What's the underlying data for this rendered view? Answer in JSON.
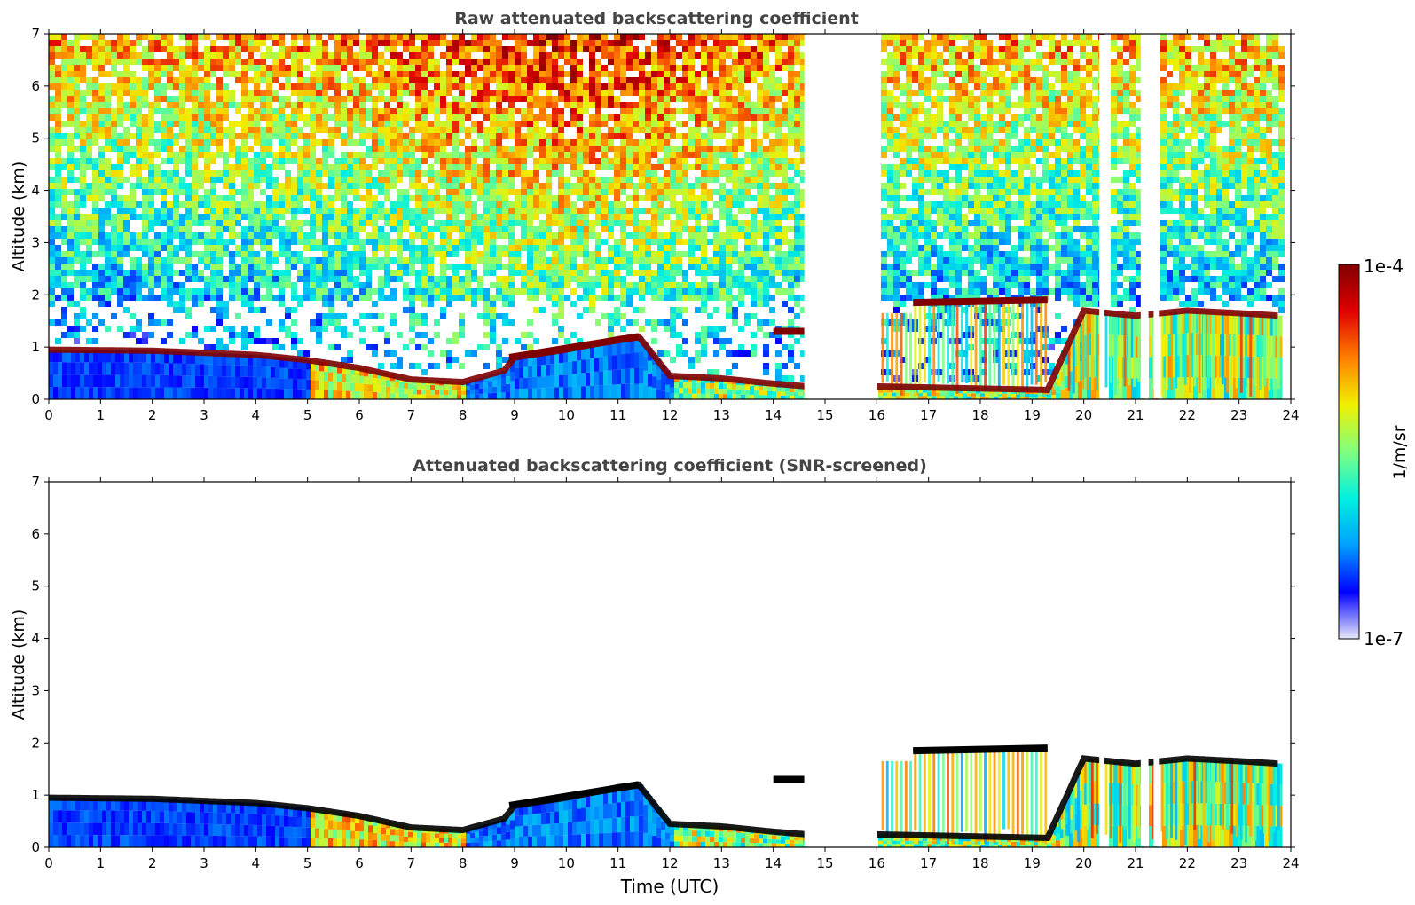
{
  "figure": {
    "xlabel": "Time (UTC)",
    "colorbar": {
      "label": "1/m/sr",
      "max_label": "1e-4",
      "min_label": "1e-7",
      "scale": "log",
      "range": [
        1e-07,
        0.0001
      ],
      "colormap": "jet",
      "stops": [
        "#e8e8f8",
        "#0000ff",
        "#00a0ff",
        "#00f0e0",
        "#80ff80",
        "#f0f000",
        "#ff8000",
        "#e00000",
        "#800000"
      ]
    }
  },
  "chart_data": [
    {
      "type": "heatmap",
      "title": "Raw attenuated backscattering coefficient",
      "xlabel": "",
      "ylabel": "Altitude (km)",
      "xlim": [
        0,
        24
      ],
      "ylim": [
        0,
        7
      ],
      "xticks": [
        "0",
        "1",
        "2",
        "3",
        "4",
        "5",
        "6",
        "7",
        "8",
        "9",
        "10",
        "11",
        "12",
        "13",
        "14",
        "15",
        "16",
        "17",
        "18",
        "19",
        "20",
        "21",
        "22",
        "23",
        "24"
      ],
      "yticks": [
        "0",
        "1",
        "2",
        "3",
        "4",
        "5",
        "6",
        "7"
      ],
      "z_units": "1/m/sr",
      "z_scale": "log",
      "z_range": [
        1e-07,
        0.0001
      ],
      "data_extent_hours": [
        0,
        23.8
      ],
      "noise_above_layer": true,
      "background_peak_hour": 10,
      "cloud_layer_top_km": {
        "hours": [
          0,
          2,
          4,
          5,
          6,
          7,
          8,
          8.8,
          9,
          10,
          11,
          11.4,
          12,
          13,
          14,
          15,
          16,
          17,
          18,
          19,
          19.3,
          20,
          21,
          22,
          23,
          23.8
        ],
        "altitude": [
          0.95,
          0.93,
          0.85,
          0.75,
          0.6,
          0.38,
          0.33,
          0.55,
          0.8,
          0.95,
          1.15,
          1.2,
          0.45,
          0.4,
          0.3,
          0.22,
          0.25,
          0.25,
          0.22,
          0.2,
          0.18,
          1.7,
          1.6,
          1.7,
          1.65,
          1.6
        ]
      },
      "elevated_cloud_segments_km": [
        {
          "hours": [
            8.9,
            11.4
          ],
          "altitude": [
            0.8,
            1.2
          ]
        },
        {
          "hours": [
            14.0,
            14.6
          ],
          "altitude": [
            1.3,
            1.3
          ]
        },
        {
          "hours": [
            16.7,
            19.3
          ],
          "altitude": [
            1.85,
            1.9
          ]
        }
      ],
      "gap_hours": [
        [
          14.6,
          16.0
        ],
        [
          20.3,
          20.4
        ],
        [
          21.1,
          21.25
        ],
        [
          21.35,
          21.45
        ]
      ]
    },
    {
      "type": "heatmap",
      "title": "Attenuated backscattering coefficient (SNR-screened)",
      "xlabel": "Time (UTC)",
      "ylabel": "Altitude (km)",
      "xlim": [
        0,
        24
      ],
      "ylim": [
        0,
        7
      ],
      "xticks": [
        "0",
        "1",
        "2",
        "3",
        "4",
        "5",
        "6",
        "7",
        "8",
        "9",
        "10",
        "11",
        "12",
        "13",
        "14",
        "15",
        "16",
        "17",
        "18",
        "19",
        "20",
        "21",
        "22",
        "23",
        "24"
      ],
      "yticks": [
        "0",
        "1",
        "2",
        "3",
        "4",
        "5",
        "6",
        "7"
      ],
      "z_units": "1/m/sr",
      "z_scale": "log",
      "z_range": [
        1e-07,
        0.0001
      ],
      "data_extent_hours": [
        0,
        23.8
      ],
      "noise_above_layer": false,
      "saturated_color": "#000000",
      "cloud_layer_top_km": {
        "hours": [
          0,
          2,
          4,
          5,
          6,
          7,
          8,
          8.8,
          9,
          10,
          11,
          11.4,
          12,
          13,
          14,
          15,
          16,
          17,
          18,
          19,
          19.3,
          20,
          21,
          22,
          23,
          23.8
        ],
        "altitude": [
          0.95,
          0.93,
          0.85,
          0.75,
          0.6,
          0.38,
          0.33,
          0.55,
          0.8,
          0.95,
          1.15,
          1.2,
          0.45,
          0.4,
          0.3,
          0.22,
          0.25,
          0.25,
          0.22,
          0.2,
          0.18,
          1.7,
          1.6,
          1.7,
          1.65,
          1.6
        ]
      },
      "elevated_cloud_segments_km": [
        {
          "hours": [
            8.9,
            11.4
          ],
          "altitude": [
            0.8,
            1.2
          ]
        },
        {
          "hours": [
            14.0,
            14.6
          ],
          "altitude": [
            1.3,
            1.3
          ]
        },
        {
          "hours": [
            16.7,
            19.3
          ],
          "altitude": [
            1.85,
            1.9
          ]
        }
      ],
      "gap_hours": [
        [
          14.6,
          16.0
        ],
        [
          20.3,
          20.4
        ],
        [
          21.1,
          21.25
        ],
        [
          21.35,
          21.45
        ]
      ]
    }
  ]
}
